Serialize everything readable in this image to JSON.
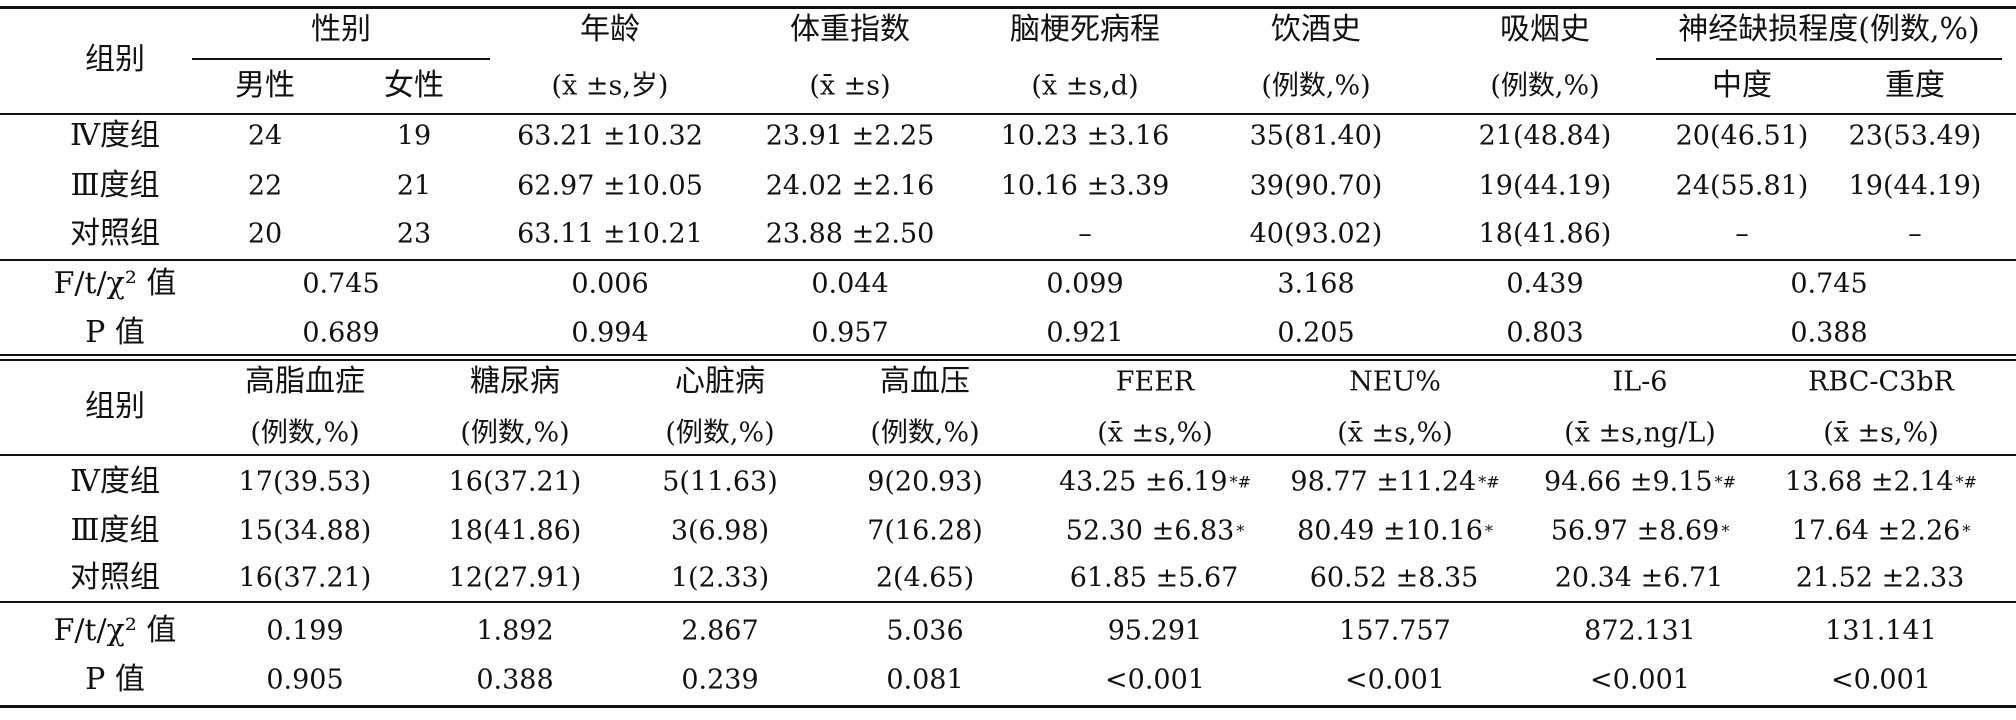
{
  "table1": {
    "header": {
      "group": "组别",
      "sex": "性别",
      "male": "男性",
      "female": "女性",
      "age": "年龄",
      "age_unit": "(x̄ ±s,岁)",
      "bmi": "体重指数",
      "bmi_unit": "(x̄ ±s)",
      "course": "脑梗死病程",
      "course_unit": "(x̄ ±s,d)",
      "drink": "饮酒史",
      "drink_unit": "(例数,%)",
      "smoke": "吸烟史",
      "smoke_unit": "(例数,%)",
      "neuro": "神经缺损程度(例数,%)",
      "moderate": "中度",
      "severe": "重度"
    },
    "rows": [
      {
        "group": "Ⅳ度组",
        "male": "24",
        "female": "19",
        "age": "63.21 ±10.32",
        "bmi": "23.91 ±2.25",
        "course": "10.23 ±3.16",
        "drink": "35(81.40)",
        "smoke": "21(48.84)",
        "moderate": "20(46.51)",
        "severe": "23(53.49)"
      },
      {
        "group": "Ⅲ度组",
        "male": "22",
        "female": "21",
        "age": "62.97 ±10.05",
        "bmi": "24.02 ±2.16",
        "course": "10.16 ±3.39",
        "drink": "39(90.70)",
        "smoke": "19(44.19)",
        "moderate": "24(55.81)",
        "severe": "19(44.19)"
      },
      {
        "group": "对照组",
        "male": "20",
        "female": "23",
        "age": "63.11 ±10.21",
        "bmi": "23.88 ±2.50",
        "course": "–",
        "drink": "40(93.02)",
        "smoke": "18(41.86)",
        "moderate": "–",
        "severe": "–"
      }
    ],
    "stat_label": "F/t/χ² 值",
    "p_label": "P 值",
    "stats": {
      "sex": "0.745",
      "age": "0.006",
      "bmi": "0.044",
      "course": "0.099",
      "drink": "3.168",
      "smoke": "0.439",
      "neuro": "0.745"
    },
    "pvals": {
      "sex": "0.689",
      "age": "0.994",
      "bmi": "0.957",
      "course": "0.921",
      "drink": "0.205",
      "smoke": "0.803",
      "neuro": "0.388"
    }
  },
  "table2": {
    "header": {
      "group": "组别",
      "hyperlipidemia": "高脂血症",
      "diabetes": "糖尿病",
      "heart": "心脏病",
      "hypertension": "高血压",
      "feer": "FEER",
      "neu": "NEU%",
      "il6": "IL-6",
      "rbc": "RBC-C3bR",
      "count_unit": "(例数,%)",
      "pct_unit": "(x̄ ±s,%)",
      "il6_unit": "(x̄ ±s,ng/L)"
    },
    "rows": [
      {
        "group": "Ⅳ度组",
        "hyperlipidemia": "17(39.53)",
        "diabetes": "16(37.21)",
        "heart": "5(11.63)",
        "hypertension": "9(20.93)",
        "feer": "43.25 ±6.19",
        "feer_mark": "*#",
        "neu": "98.77 ±11.24",
        "neu_mark": "*#",
        "il6": "94.66 ±9.15",
        "il6_mark": "*#",
        "rbc": "13.68 ±2.14",
        "rbc_mark": "*#"
      },
      {
        "group": "Ⅲ度组",
        "hyperlipidemia": "15(34.88)",
        "diabetes": "18(41.86)",
        "heart": "3(6.98)",
        "hypertension": "7(16.28)",
        "feer": "52.30 ±6.83",
        "feer_mark": "*",
        "neu": "80.49 ±10.16",
        "neu_mark": "*",
        "il6": "56.97 ±8.69",
        "il6_mark": "*",
        "rbc": "17.64 ±2.26",
        "rbc_mark": "*"
      },
      {
        "group": "对照组",
        "hyperlipidemia": "16(37.21)",
        "diabetes": "12(27.91)",
        "heart": "1(2.33)",
        "hypertension": "2(4.65)",
        "feer": "61.85 ±5.67",
        "feer_mark": "",
        "neu": "60.52 ±8.35",
        "neu_mark": "",
        "il6": "20.34 ±6.71",
        "il6_mark": "",
        "rbc": "21.52 ±2.33",
        "rbc_mark": ""
      }
    ],
    "stat_label": "F/t/χ² 值",
    "p_label": "P 值",
    "stats": {
      "hyperlipidemia": "0.199",
      "diabetes": "1.892",
      "heart": "2.867",
      "hypertension": "5.036",
      "feer": "95.291",
      "neu": "157.757",
      "il6": "872.131",
      "rbc": "131.141"
    },
    "pvals": {
      "hyperlipidemia": "0.905",
      "diabetes": "0.388",
      "heart": "0.239",
      "hypertension": "0.081",
      "feer": "<0.001",
      "neu": "<0.001",
      "il6": "<0.001",
      "rbc": "<0.001"
    }
  }
}
